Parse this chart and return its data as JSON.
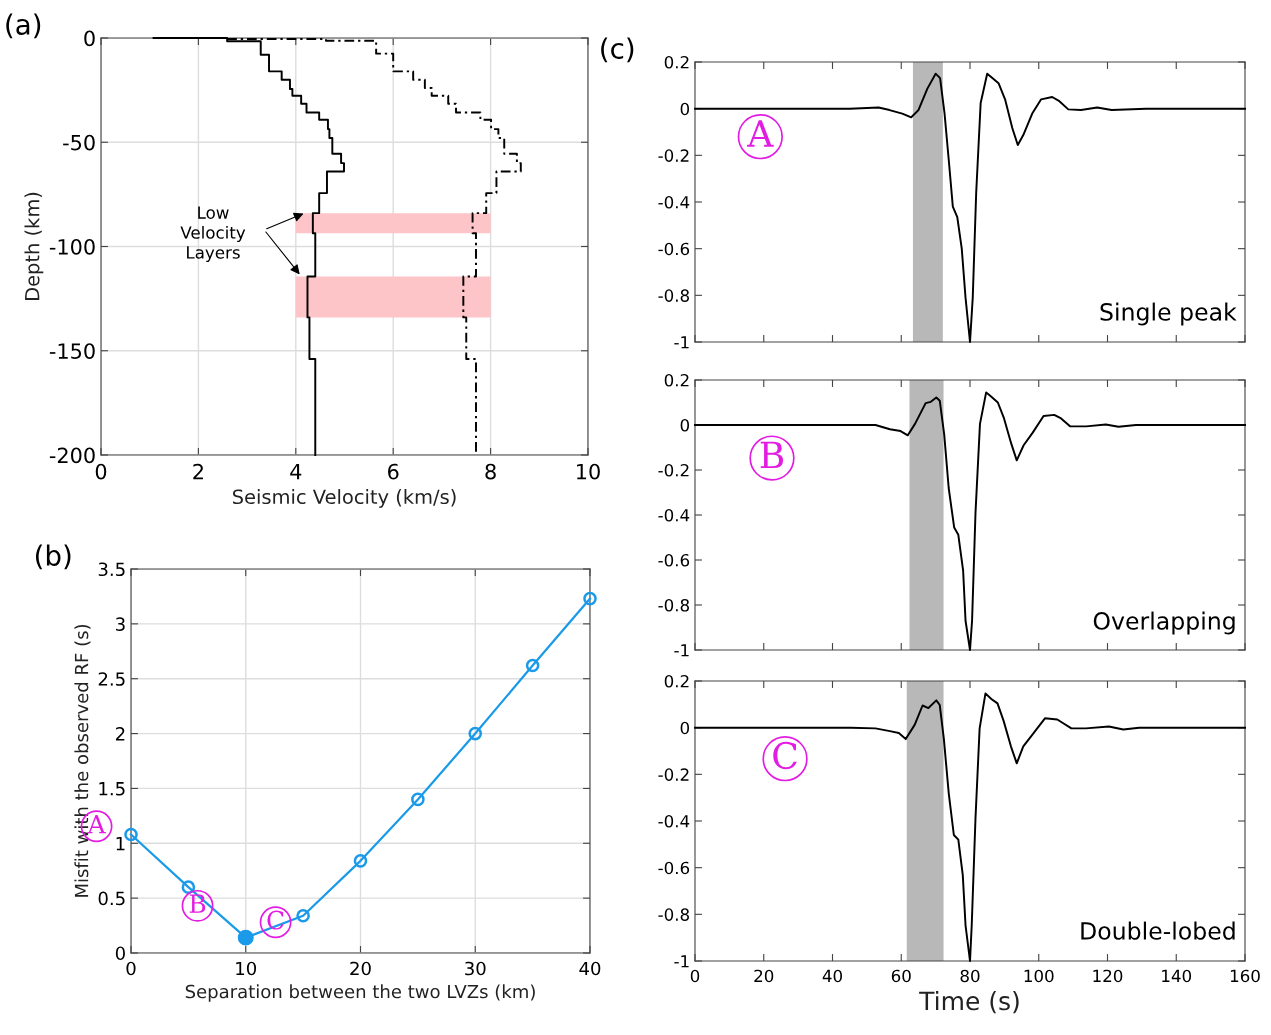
{
  "chart_data": [
    {
      "type": "line",
      "title": "(a)",
      "xlabel": "Seismic Velocity (km/s)",
      "ylabel": "Depth (km)",
      "xlim": [
        0,
        10
      ],
      "xticks": [
        0,
        2,
        4,
        6,
        8,
        10
      ],
      "ylim": [
        -200,
        0
      ],
      "yticks": [
        -200,
        -150,
        -100,
        -50,
        0
      ],
      "grid": true,
      "series": [
        {
          "color": "#000000",
          "line_style": "solid",
          "x": [
            1.08,
            2.59,
            2.59,
            3.28,
            3.28,
            3.45,
            3.45,
            3.71,
            3.71,
            3.88,
            3.88,
            3.93,
            3.93,
            4.11,
            4.11,
            4.22,
            4.22,
            4.48,
            4.48,
            4.66,
            4.66,
            4.69,
            4.69,
            4.75,
            4.75,
            4.93,
            4.93,
            4.99,
            4.99,
            4.64,
            4.64,
            4.48,
            4.48,
            4.35,
            4.35,
            4.4,
            4.4,
            4.24,
            4.24,
            4.28,
            4.28,
            4.4,
            4.4
          ],
          "values": [
            0,
            0,
            -1.6,
            -1.6,
            -8,
            -8,
            -16,
            -16,
            -20,
            -20,
            -24.5,
            -24.5,
            -27.7,
            -27.7,
            -31.5,
            -31.5,
            -35.7,
            -35.7,
            -39.2,
            -39.2,
            -43.7,
            -43.7,
            -48,
            -48,
            -55.5,
            -55.5,
            -60,
            -60,
            -64,
            -64,
            -74.4,
            -74.4,
            -84,
            -84,
            -93.6,
            -93.6,
            -114.4,
            -114.4,
            -134,
            -134,
            -154,
            -154,
            -200
          ]
        },
        {
          "color": "#000000",
          "line_style": "dashed",
          "x": [
            2.59,
            4.62,
            4.62,
            5.65,
            5.65,
            6.0,
            6.0,
            6.41,
            6.41,
            6.65,
            6.65,
            6.79,
            6.79,
            7.13,
            7.13,
            7.29,
            7.29,
            7.79,
            7.79,
            8.01,
            8.01,
            8.16,
            8.16,
            8.28,
            8.28,
            8.54,
            8.54,
            8.62,
            8.62,
            8.12,
            8.12,
            7.91,
            7.91,
            7.63,
            7.63,
            7.7,
            7.7,
            7.44,
            7.44,
            7.5,
            7.5,
            7.7,
            7.7
          ],
          "values": [
            -0.5,
            -0.5,
            -1.3,
            -1.3,
            -7.5,
            -7.5,
            -16,
            -16,
            -20,
            -20,
            -24,
            -24,
            -27.7,
            -27.7,
            -31.5,
            -31.5,
            -35.7,
            -35.7,
            -39.2,
            -39.2,
            -43.7,
            -43.7,
            -48,
            -48,
            -55.5,
            -55.5,
            -60,
            -60,
            -64,
            -64,
            -74.4,
            -74.4,
            -84,
            -84,
            -93.6,
            -93.6,
            -114.4,
            -114.4,
            -134,
            -134,
            -154,
            -154,
            -200
          ]
        },
        {
          "type": "area",
          "color": "#fdc5c8",
          "x": [
            4,
            8,
            8,
            4
          ],
          "values": [
            -84,
            -84,
            -93.6,
            -93.6
          ]
        },
        {
          "type": "area",
          "color": "#fdc5c8",
          "x": [
            4,
            8,
            8,
            4
          ],
          "values": [
            -114.4,
            -114.4,
            -134,
            -134
          ]
        }
      ],
      "annotations": [
        {
          "text": "Low\nVelocity\nLayers",
          "x": 4.21,
          "y": -83.7
        }
      ]
    },
    {
      "type": "line",
      "title": "(b)",
      "xlabel": "Separation between the two LVZs (km)",
      "ylabel": "Misfit with the observed RF (s)",
      "xlim": [
        0,
        40
      ],
      "xticks": [
        0,
        10,
        20,
        30,
        40
      ],
      "ylim": [
        0,
        3.5
      ],
      "yticks": [
        0,
        0.5,
        1,
        1.5,
        2,
        2.5,
        3,
        3.5
      ],
      "grid": true,
      "marker": "circle",
      "x": [
        0,
        5,
        10,
        15,
        20,
        25,
        30,
        35,
        40
      ],
      "series": [
        {
          "color": "#1a9ae8",
          "values": [
            1.08,
            0.6,
            0.14,
            0.34,
            0.84,
            1.4,
            2.0,
            2.62,
            3.23
          ]
        },
        {
          "type": "scatter",
          "color": "#1a9ae8",
          "x": [
            10
          ],
          "values": [
            0.14
          ]
        }
      ],
      "annotations": [
        "A",
        {
          "text": "B",
          "x": 5.8,
          "y": 0.43
        },
        {
          "text": "C",
          "x": 12.6,
          "y": 0.28
        }
      ]
    },
    {
      "type": "line",
      "title": "(c)",
      "xlim": [
        0,
        160
      ],
      "xticks": [
        0,
        20,
        40,
        60,
        80,
        100,
        120,
        140,
        160
      ],
      "ylim": [
        -1,
        0.2
      ],
      "yticks": [
        -1,
        -0.8,
        -0.6,
        -0.4,
        -0.2,
        0,
        0.2
      ],
      "grid": false,
      "tick_labels": "y",
      "series": [
        {
          "color": "#000000",
          "x": [
            0,
            45,
            53.4,
            56.6,
            60.3,
            62.9,
            65,
            67.6,
            70,
            71.3,
            72.6,
            74,
            75,
            76.3,
            77.6,
            78.7,
            80,
            80.8,
            81.8,
            83.1,
            85,
            86.5,
            88.3,
            90.2,
            92.3,
            93.9,
            95.5,
            98.1,
            100.7,
            103.9,
            106,
            108.6,
            112.3,
            117,
            121.2,
            131.2,
            160
          ],
          "values": [
            0,
            0,
            0.005,
            -0.006,
            -0.021,
            -0.037,
            -0.006,
            0.086,
            0.15,
            0.131,
            -0.021,
            -0.25,
            -0.42,
            -0.465,
            -0.6,
            -0.81,
            -1,
            -0.81,
            -0.36,
            0.024,
            0.15,
            0.131,
            0.109,
            0.04,
            -0.083,
            -0.156,
            -0.113,
            -0.021,
            0.04,
            0.05,
            0.032,
            -0.003,
            -0.006,
            0.005,
            -0.006,
            0,
            0
          ]
        }
      ],
      "bands": [
        {
          "axis": "x",
          "from": 63.4,
          "to": 72.1,
          "color": "#b8b8b8"
        }
      ],
      "annotations": [
        {
          "text": "A",
          "x": 19,
          "y": -0.12
        },
        "Single peak"
      ]
    },
    {
      "type": "line",
      "xlim": [
        0,
        160
      ],
      "xticks": [
        0,
        20,
        40,
        60,
        80,
        100,
        120,
        140,
        160
      ],
      "ylim": [
        -1,
        0.2
      ],
      "yticks": [
        -1,
        -0.8,
        -0.6,
        -0.4,
        -0.2,
        0,
        0.2
      ],
      "grid": false,
      "tick_labels": "y",
      "series": [
        {
          "color": "#000000",
          "x": [
            0,
            45.3,
            52.5,
            56.7,
            59.8,
            61.9,
            64,
            67.1,
            68.6,
            70.2,
            71.2,
            72.5,
            73.8,
            75.4,
            76.6,
            78,
            78.7,
            80,
            80.6,
            81.6,
            82.9,
            84.7,
            86.3,
            88.1,
            89.9,
            92,
            93.6,
            95.6,
            98.2,
            101.4,
            104.5,
            106.5,
            109.1,
            113.8,
            119.5,
            123.2,
            128.3,
            160
          ],
          "values": [
            0,
            0,
            0,
            -0.019,
            -0.027,
            -0.046,
            0.005,
            0.097,
            0.103,
            0.122,
            0.108,
            -0.043,
            -0.28,
            -0.456,
            -0.488,
            -0.647,
            -0.87,
            -1,
            -0.87,
            -0.39,
            0.005,
            0.145,
            0.124,
            0.1,
            0.029,
            -0.083,
            -0.157,
            -0.09,
            -0.035,
            0.04,
            0.045,
            0.029,
            -0.006,
            -0.006,
            0.002,
            -0.008,
            0,
            0
          ]
        }
      ],
      "bands": [
        {
          "axis": "x",
          "from": 62.4,
          "to": 72.3,
          "color": "#b8b8b8"
        }
      ],
      "annotations": [
        {
          "text": "B",
          "x": 22.4,
          "y": -0.147
        },
        "Overlapping"
      ]
    },
    {
      "type": "line",
      "xlabel": "Time (s)",
      "xlim": [
        0,
        160
      ],
      "xticks": [
        0,
        20,
        40,
        60,
        80,
        100,
        120,
        140,
        160
      ],
      "ylim": [
        -1,
        0.2
      ],
      "yticks": [
        -1,
        -0.8,
        -0.6,
        -0.4,
        -0.2,
        0,
        0.2
      ],
      "grid": false,
      "series": [
        {
          "color": "#000000",
          "x": [
            0,
            45.3,
            52.5,
            56.7,
            59.3,
            61.3,
            63.9,
            66.2,
            67.9,
            70.2,
            71.2,
            72.4,
            73.8,
            75.3,
            76.6,
            77.9,
            78.7,
            80,
            80.5,
            81.6,
            82.8,
            84.5,
            86.2,
            88,
            89.8,
            91.9,
            93.6,
            95.5,
            98.1,
            101.8,
            105.4,
            107,
            109.5,
            113.7,
            120.4,
            124.6,
            129.2,
            160
          ],
          "values": [
            0,
            0,
            -0.003,
            -0.015,
            -0.023,
            -0.049,
            0.012,
            0.095,
            0.084,
            0.117,
            0.097,
            -0.049,
            -0.279,
            -0.46,
            -0.48,
            -0.632,
            -0.847,
            -1,
            -0.847,
            -0.387,
            -0.003,
            0.147,
            0.123,
            0.104,
            0.028,
            -0.08,
            -0.153,
            -0.08,
            -0.031,
            0.04,
            0.035,
            0.02,
            -0.003,
            -0.003,
            0.005,
            -0.008,
            0,
            0
          ]
        }
      ],
      "bands": [
        {
          "axis": "x",
          "from": 61.6,
          "to": 72.3,
          "color": "#b8b8b8"
        }
      ],
      "annotations": [
        {
          "text": "C",
          "x": 26.2,
          "y": -0.133
        },
        "Double-lobed"
      ]
    }
  ]
}
